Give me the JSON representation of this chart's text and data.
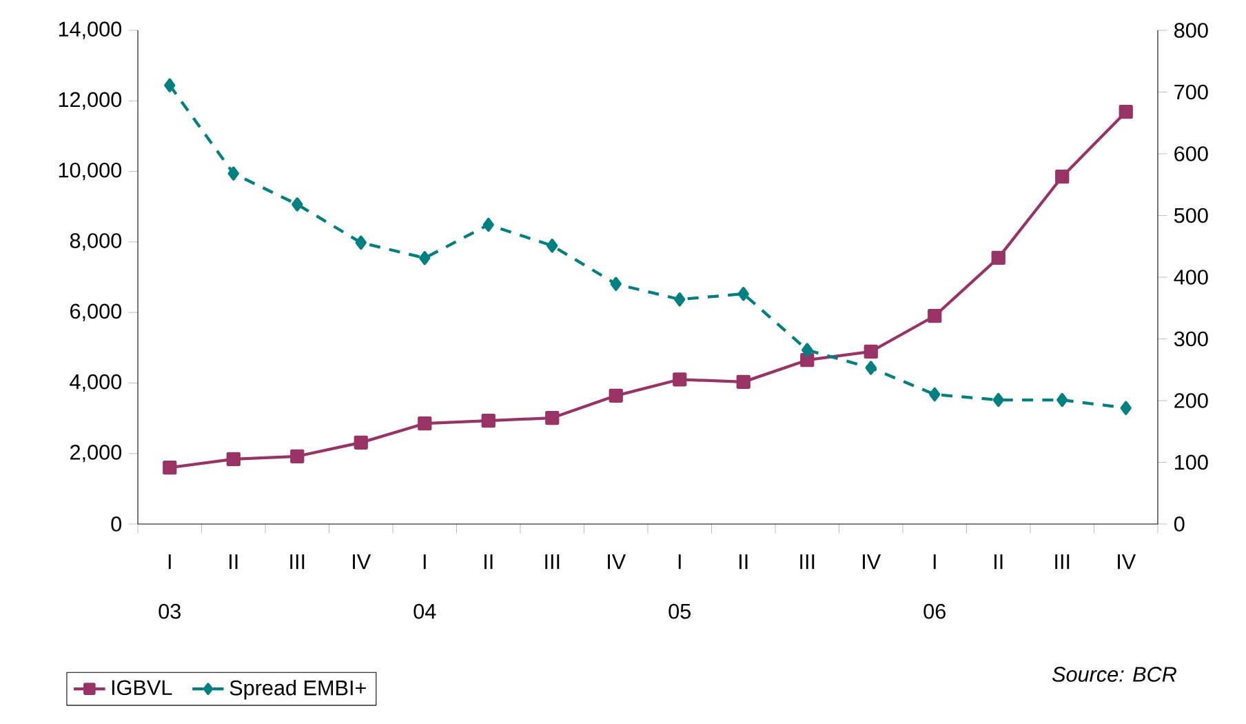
{
  "chart_data": {
    "type": "line",
    "categories": [
      "I 03",
      "II",
      "III",
      "IV",
      "I 04",
      "II",
      "III",
      "IV",
      "I 05",
      "II",
      "III",
      "IV",
      "I 06",
      "II",
      "III",
      "IV"
    ],
    "series": [
      {
        "name": "IGBVL",
        "color": "#993366",
        "marker": "square",
        "line_style": "solid",
        "values": [
          1600,
          1840,
          1920,
          2310,
          2850,
          2930,
          3010,
          3640,
          4100,
          4030,
          4650,
          4890,
          5900,
          7550,
          9850,
          11690
        ]
      },
      {
        "name": "Spread EMBI+",
        "color": "#008080",
        "marker": "diamond",
        "line_style": "dashed",
        "axis": "y2",
        "values": [
          711,
          568,
          518,
          456,
          431,
          485,
          451,
          389,
          364,
          373,
          282,
          253,
          210,
          201,
          201,
          188
        ]
      }
    ],
    "ylim": [
      0,
      14000
    ],
    "yticks": [
      0,
      {
        "value": 2000,
        "label": "2,000"
      },
      {
        "value": 4000,
        "label": "4,000"
      },
      {
        "value": 6000,
        "label": "6,000"
      },
      {
        "value": 8000,
        "label": "8,000"
      },
      {
        "value": 10000,
        "label": "10,000"
      },
      {
        "value": 12000,
        "label": "12,000"
      },
      {
        "value": 14000,
        "label": "14,000"
      }
    ],
    "y2lim": [
      0,
      800
    ],
    "y2ticks": [
      0,
      100,
      200,
      300,
      400,
      500,
      600,
      700,
      800
    ],
    "legend": "bottom left",
    "annotations": [
      "Source: BCR"
    ]
  }
}
